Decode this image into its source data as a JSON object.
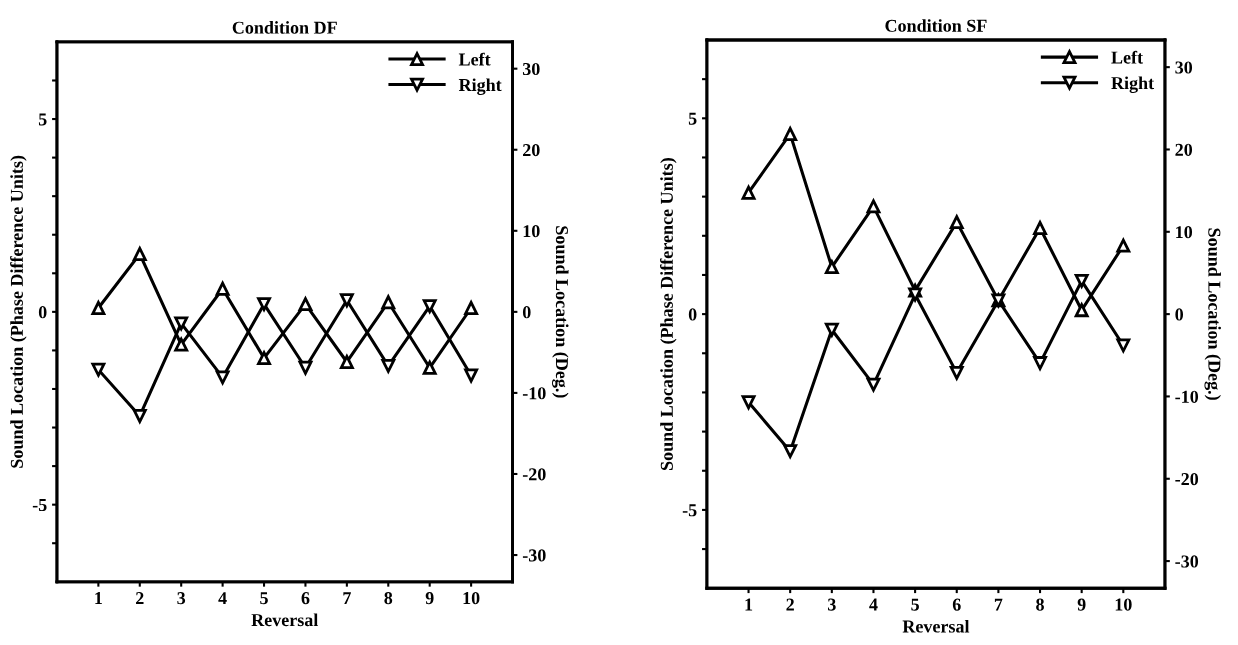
{
  "chart_data": [
    {
      "type": "line",
      "title": "Condition DF",
      "xlabel": "Reversal",
      "ylabel": "Sound Location (Phase Difference Units)",
      "y2label": "Sound Location (Deg.)",
      "x": [
        1,
        2,
        3,
        4,
        5,
        6,
        7,
        8,
        9,
        10
      ],
      "xlim": [
        0,
        11
      ],
      "xticks": [
        1,
        2,
        3,
        4,
        5,
        6,
        7,
        8,
        9,
        10
      ],
      "ylim": [
        -7,
        7
      ],
      "yticks": [
        {
          "value": -6,
          "label": null
        },
        -5,
        {
          "value": -4,
          "label": null
        },
        {
          "value": -3,
          "label": null
        },
        {
          "value": -2,
          "label": null
        },
        {
          "value": -1,
          "label": null
        },
        0,
        {
          "value": 1,
          "label": null
        },
        {
          "value": 2,
          "label": null
        },
        {
          "value": 3,
          "label": null
        },
        {
          "value": 4,
          "label": null
        },
        5,
        {
          "value": 6,
          "label": null
        }
      ],
      "y2lim": [
        -33.3,
        33.3
      ],
      "y2ticks": [
        -30,
        -20,
        -10,
        0,
        10,
        20,
        30
      ],
      "legend": "top right",
      "grid": false,
      "line_style": "solid",
      "series": [
        {
          "name": "Left",
          "color": "#000000",
          "marker": "triangle",
          "values": [
            0.1,
            1.5,
            -0.85,
            0.6,
            -1.2,
            0.2,
            -1.3,
            0.25,
            -1.45,
            0.1
          ]
        },
        {
          "name": "Right",
          "color": "#000000",
          "marker": "triangle_down",
          "values": [
            -1.5,
            -2.7,
            -0.3,
            -1.7,
            0.2,
            -1.45,
            0.3,
            -1.4,
            0.15,
            -1.65
          ]
        }
      ]
    },
    {
      "type": "line",
      "title": "Condition SF",
      "xlabel": "Reversal",
      "ylabel": "Sound Location (Phase Difference Units)",
      "y2label": "Sound Location (Deg.)",
      "x": [
        1,
        2,
        3,
        4,
        5,
        6,
        7,
        8,
        9,
        10
      ],
      "xlim": [
        0,
        11
      ],
      "xticks": [
        1,
        2,
        3,
        4,
        5,
        6,
        7,
        8,
        9,
        10
      ],
      "ylim": [
        -7,
        7
      ],
      "yticks": [
        {
          "value": -6,
          "label": null
        },
        -5,
        {
          "value": -4,
          "label": null
        },
        {
          "value": -3,
          "label": null
        },
        {
          "value": -2,
          "label": null
        },
        {
          "value": -1,
          "label": null
        },
        0,
        {
          "value": 1,
          "label": null
        },
        {
          "value": 2,
          "label": null
        },
        {
          "value": 3,
          "label": null
        },
        {
          "value": 4,
          "label": null
        },
        5,
        {
          "value": 6,
          "label": null
        }
      ],
      "y2lim": [
        -33.3,
        33.3
      ],
      "y2ticks": [
        -30,
        -20,
        -10,
        0,
        10,
        20,
        30
      ],
      "legend": "top right",
      "grid": false,
      "line_style": "solid",
      "series": [
        {
          "name": "Left",
          "color": "#000000",
          "marker": "triangle",
          "values": [
            3.1,
            4.6,
            1.2,
            2.75,
            0.6,
            2.35,
            0.35,
            2.2,
            0.1,
            1.75
          ]
        },
        {
          "name": "Right",
          "color": "#000000",
          "marker": "triangle_down",
          "values": [
            -2.25,
            -3.5,
            -0.4,
            -1.8,
            0.5,
            -1.5,
            0.35,
            -1.25,
            0.85,
            -0.8
          ]
        }
      ]
    }
  ]
}
